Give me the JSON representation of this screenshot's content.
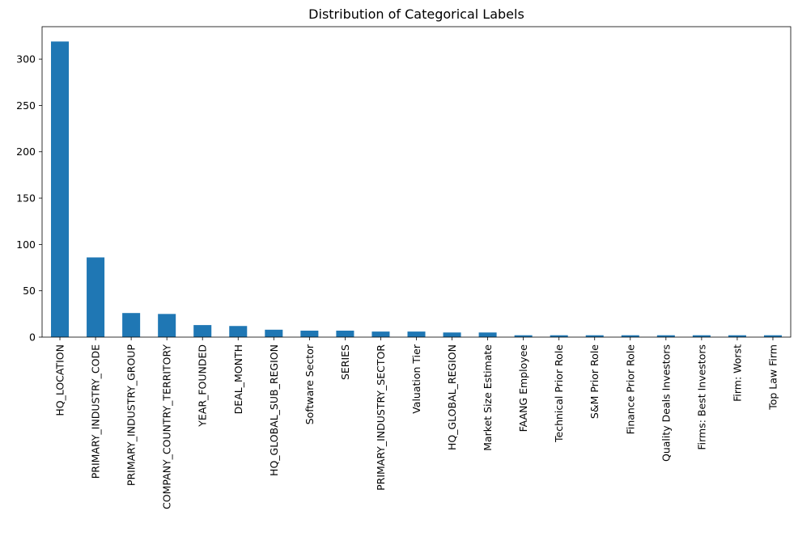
{
  "chart_data": {
    "type": "bar",
    "title": "Distribution of Categorical Labels",
    "xlabel": "",
    "ylabel": "",
    "ylim": [
      0,
      335
    ],
    "yticks": [
      0,
      50,
      100,
      150,
      200,
      250,
      300
    ],
    "grid": false,
    "color": "#1f77b4",
    "categories": [
      "HQ_LOCATION",
      "PRIMARY_INDUSTRY_CODE",
      "PRIMARY_INDUSTRY_GROUP",
      "COMPANY_COUNTRY_TERRITORY",
      "YEAR_FOUNDED",
      "DEAL_MONTH",
      "HQ_GLOBAL_SUB_REGION",
      "Software Sector",
      "SERIES",
      "PRIMARY_INDUSTRY_SECTOR",
      "Valuation Tier",
      "HQ_GLOBAL_REGION",
      "Market Size Estimate",
      "FAANG Employee",
      "Technical Prior Role",
      "S&M Prior Role",
      "Finance Prior Role",
      "Quality Deals Investors",
      "Firms: Best Investors",
      "Firm: Worst",
      "Top Law Firm"
    ],
    "values": [
      319,
      86,
      26,
      25,
      13,
      12,
      8,
      7,
      7,
      6,
      6,
      5,
      5,
      2,
      2,
      2,
      2,
      2,
      2,
      2,
      2
    ]
  }
}
